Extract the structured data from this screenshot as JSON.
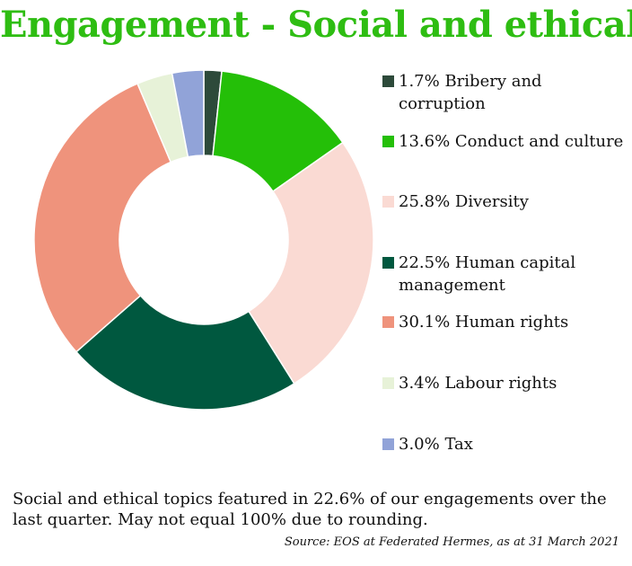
{
  "chart_data": {
    "type": "pie",
    "title": "Engagement - Social and ethical",
    "slices": [
      {
        "label": "1.7% Bribery and corruption",
        "value": 1.7,
        "color": "#2d4a3a"
      },
      {
        "label": "13.6% Conduct and culture",
        "value": 13.6,
        "color": "#24bf08"
      },
      {
        "label": "25.8% Diversity",
        "value": 25.8,
        "color": "#fadad3"
      },
      {
        "label": "22.5% Human capital management",
        "value": 22.5,
        "color": "#00583f"
      },
      {
        "label": "30.1% Human rights",
        "value": 30.1,
        "color": "#ef937c"
      },
      {
        "label": "3.4% Labour rights",
        "value": 3.4,
        "color": "#e7f2d8"
      },
      {
        "label": "3.0% Tax",
        "value": 3.0,
        "color": "#91a3d8"
      }
    ],
    "legend_position": "right"
  },
  "caption": "Social and ethical topics featured in 22.6% of our engagements over the last quarter. May not equal 100% due to rounding.",
  "source": "Source: EOS at Federated Hermes, as at 31 March 2021"
}
